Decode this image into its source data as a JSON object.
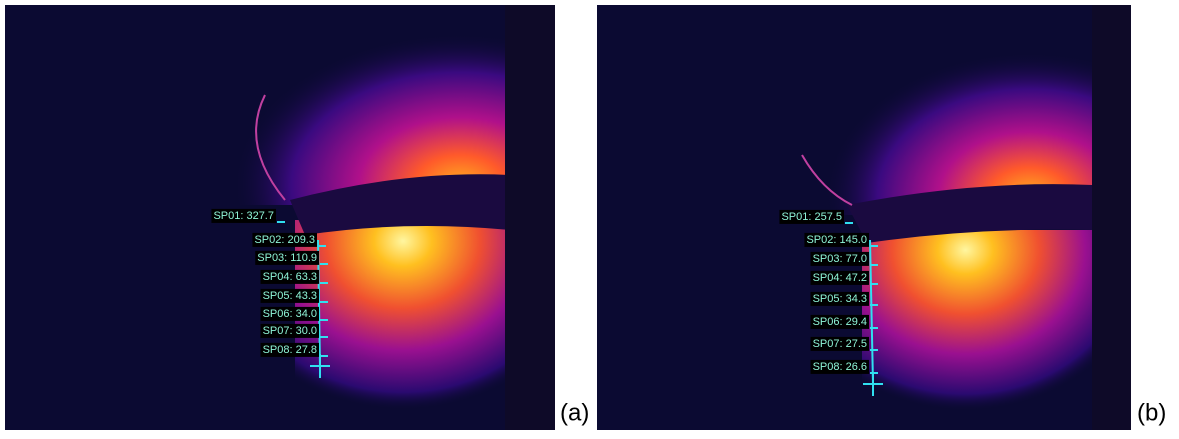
{
  "panels": [
    {
      "label": "(a)",
      "spots": [
        "SP01: 327.7",
        "SP02: 209.3",
        "SP03: 110.9",
        "SP04: 63.3",
        "SP05: 43.3",
        "SP06: 34.0",
        "SP07: 30.0",
        "SP08: 27.8"
      ]
    },
    {
      "label": "(b)",
      "spots": [
        "SP01: 257.5",
        "SP02: 145.0",
        "SP03: 77.0",
        "SP04: 47.2",
        "SP05: 34.3",
        "SP06: 29.4",
        "SP07: 27.5",
        "SP08: 26.6"
      ]
    }
  ]
}
